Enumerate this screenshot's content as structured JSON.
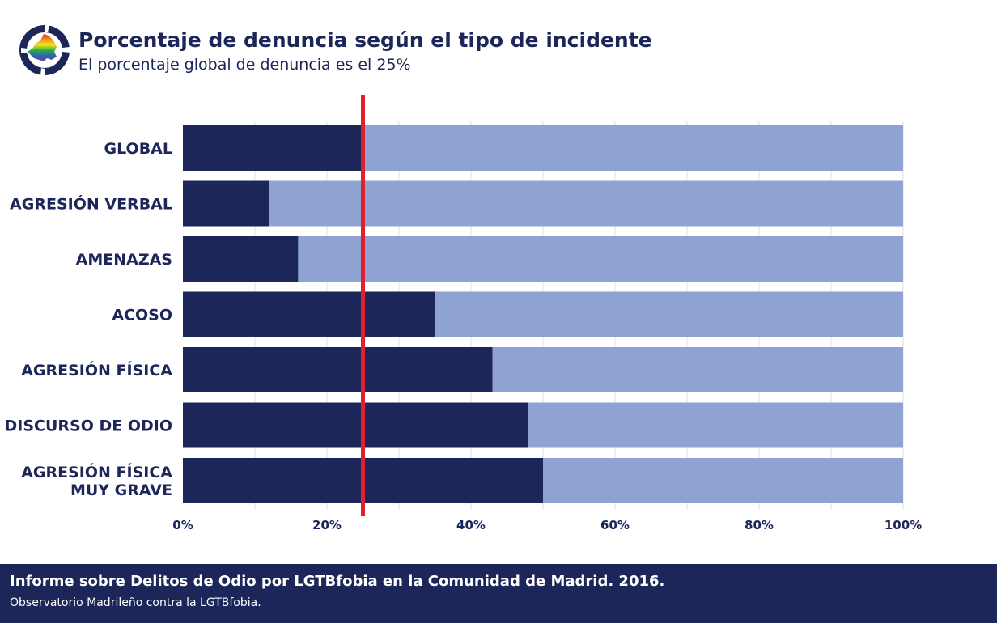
{
  "header": {
    "title": "Porcentaje de denuncia según el tipo de incidente",
    "subtitle": "El porcentaje global de denuncia es el 25%",
    "logo_icon": "madrid-rainbow-map-icon"
  },
  "chart_data": {
    "type": "bar",
    "orientation": "horizontal",
    "stacked": true,
    "categories": [
      "GLOBAL",
      "AGRESIÓN VERBAL",
      "AMENAZAS",
      "ACOSO",
      "AGRESIÓN FÍSICA",
      "DISCURSO DE ODIO",
      "AGRESIÓN FÍSICA MUY GRAVE"
    ],
    "category_lines": [
      [
        "GLOBAL"
      ],
      [
        "AGRESIÓN VERBAL"
      ],
      [
        "AMENAZAS"
      ],
      [
        "ACOSO"
      ],
      [
        "AGRESIÓN FÍSICA"
      ],
      [
        "DISCURSO DE ODIO"
      ],
      [
        "AGRESIÓN FÍSICA",
        "MUY GRAVE"
      ]
    ],
    "series": [
      {
        "values": [
          25,
          12,
          16,
          35,
          43,
          48,
          50
        ],
        "color": "#1c2659"
      },
      {
        "values": [
          75,
          88,
          84,
          65,
          57,
          52,
          50
        ],
        "color": "#8fa3d3"
      }
    ],
    "xlim": [
      0,
      100
    ],
    "x_ticks": [
      0,
      20,
      40,
      60,
      80,
      100
    ],
    "x_tick_labels": [
      "0%",
      "20%",
      "40%",
      "60%",
      "80%",
      "100%"
    ],
    "reference_line": {
      "value": 25,
      "color": "#e0202f"
    },
    "grid": true,
    "title": "",
    "xlabel": "",
    "ylabel": ""
  },
  "footer": {
    "title": "Informe sobre Delitos de Odio por LGTBfobia en la Comunidad de Madrid. 2016.",
    "subtitle": "Observatorio Madrileño contra la LGTBfobia."
  },
  "colors": {
    "navy": "#1c2659",
    "light_blue": "#8fa3d3",
    "red": "#e0202f"
  }
}
